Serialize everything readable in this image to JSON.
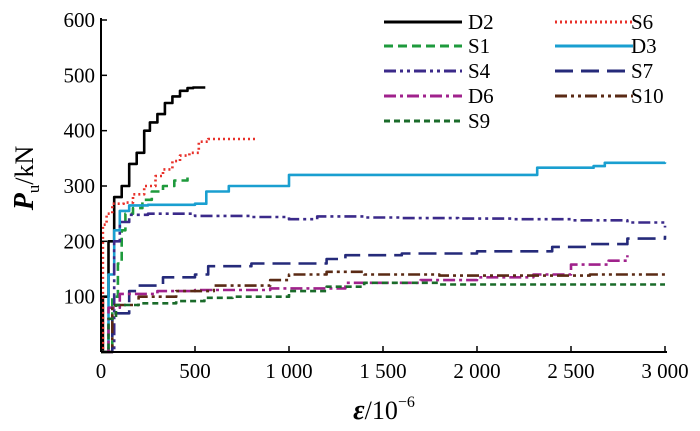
{
  "chart_data": {
    "type": "line",
    "ylabel": {
      "main": "P",
      "sub": "u",
      "unit": "/kN"
    },
    "xlabel": {
      "main": "ε",
      "unit": "/10",
      "exp": "−6"
    },
    "xlim": [
      0,
      3000
    ],
    "ylim": [
      0,
      600
    ],
    "x_ticks": [
      0,
      500,
      1000,
      1500,
      2000,
      2500,
      3000
    ],
    "x_tick_labels": [
      "0",
      "500",
      "1 000",
      "1 500",
      "2 000",
      "2 500",
      "3 000"
    ],
    "y_ticks": [
      100,
      200,
      300,
      400,
      500,
      600
    ],
    "y_tick_labels": [
      "100",
      "200",
      "300",
      "400",
      "500",
      "600"
    ],
    "grid": false,
    "legend_position": "top-right",
    "series": [
      {
        "name": "D2",
        "color": "#000000",
        "dash": "solid",
        "points": [
          [
            0,
            0
          ],
          [
            10,
            100
          ],
          [
            40,
            200
          ],
          [
            70,
            280
          ],
          [
            110,
            300
          ],
          [
            150,
            340
          ],
          [
            190,
            360
          ],
          [
            230,
            400
          ],
          [
            260,
            415
          ],
          [
            300,
            430
          ],
          [
            340,
            450
          ],
          [
            380,
            462
          ],
          [
            420,
            472
          ],
          [
            460,
            477
          ],
          [
            490,
            478
          ],
          [
            555,
            478
          ]
        ]
      },
      {
        "name": "S6",
        "color": "#e8312a",
        "dash": "dot",
        "points": [
          [
            0,
            0
          ],
          [
            10,
            230
          ],
          [
            30,
            250
          ],
          [
            60,
            268
          ],
          [
            120,
            270
          ],
          [
            170,
            285
          ],
          [
            230,
            300
          ],
          [
            290,
            318
          ],
          [
            330,
            330
          ],
          [
            380,
            345
          ],
          [
            420,
            355
          ],
          [
            470,
            360
          ],
          [
            520,
            380
          ],
          [
            570,
            385
          ],
          [
            830,
            385
          ]
        ]
      },
      {
        "name": "S1",
        "color": "#1e9a3c",
        "dash": "dash",
        "points": [
          [
            0,
            0
          ],
          [
            60,
            100
          ],
          [
            90,
            160
          ],
          [
            110,
            220
          ],
          [
            130,
            250
          ],
          [
            170,
            260
          ],
          [
            220,
            275
          ],
          [
            270,
            290
          ],
          [
            330,
            300
          ],
          [
            390,
            310
          ],
          [
            460,
            318
          ]
        ]
      },
      {
        "name": "D3",
        "color": "#1a9fd0",
        "dash": "solid",
        "points": [
          [
            0,
            0
          ],
          [
            40,
            140
          ],
          [
            70,
            220
          ],
          [
            100,
            255
          ],
          [
            150,
            265
          ],
          [
            250,
            266
          ],
          [
            500,
            268
          ],
          [
            560,
            290
          ],
          [
            680,
            300
          ],
          [
            1000,
            320
          ],
          [
            1500,
            320
          ],
          [
            1610,
            320
          ],
          [
            2000,
            320
          ],
          [
            2300,
            320
          ],
          [
            2320,
            333
          ],
          [
            2620,
            336
          ],
          [
            2680,
            342
          ],
          [
            3000,
            343
          ]
        ]
      },
      {
        "name": "S4",
        "color": "#3b2a8a",
        "dash": "dashdotdot",
        "points": [
          [
            0,
            0
          ],
          [
            70,
            200
          ],
          [
            100,
            235
          ],
          [
            150,
            248
          ],
          [
            250,
            250
          ],
          [
            500,
            246
          ],
          [
            800,
            244
          ],
          [
            1000,
            240
          ],
          [
            1150,
            245
          ],
          [
            1300,
            245
          ],
          [
            1400,
            243
          ],
          [
            1600,
            242
          ],
          [
            1900,
            241
          ],
          [
            2200,
            240
          ],
          [
            2500,
            238
          ],
          [
            2800,
            234
          ],
          [
            3000,
            225
          ]
        ]
      },
      {
        "name": "S7",
        "color": "#252a7a",
        "dash": "longdash",
        "points": [
          [
            0,
            0
          ],
          [
            60,
            70
          ],
          [
            150,
            110
          ],
          [
            200,
            120
          ],
          [
            330,
            135
          ],
          [
            500,
            140
          ],
          [
            570,
            155
          ],
          [
            800,
            160
          ],
          [
            1200,
            168
          ],
          [
            1300,
            175
          ],
          [
            1600,
            178
          ],
          [
            2000,
            182
          ],
          [
            2400,
            190
          ],
          [
            2600,
            195
          ],
          [
            2800,
            205
          ],
          [
            3000,
            210
          ]
        ]
      },
      {
        "name": "D6",
        "color": "#a0228c",
        "dash": "dashdot",
        "points": [
          [
            0,
            0
          ],
          [
            40,
            80
          ],
          [
            100,
            105
          ],
          [
            300,
            110
          ],
          [
            500,
            112
          ],
          [
            900,
            115
          ],
          [
            1300,
            125
          ],
          [
            1700,
            130
          ],
          [
            2000,
            135
          ],
          [
            2300,
            140
          ],
          [
            2500,
            158
          ],
          [
            2700,
            165
          ],
          [
            2800,
            175
          ]
        ]
      },
      {
        "name": "S10",
        "color": "#5a2a14",
        "dash": "dashdotdot",
        "points": [
          [
            0,
            0
          ],
          [
            60,
            85
          ],
          [
            200,
            100
          ],
          [
            400,
            110
          ],
          [
            600,
            120
          ],
          [
            900,
            130
          ],
          [
            1000,
            140
          ],
          [
            1200,
            145
          ],
          [
            1400,
            140
          ],
          [
            1800,
            138
          ],
          [
            2200,
            138
          ],
          [
            2600,
            140
          ],
          [
            3000,
            140
          ]
        ]
      },
      {
        "name": "S9",
        "color": "#1a6b2a",
        "dash": "shortdash",
        "points": [
          [
            0,
            0
          ],
          [
            40,
            60
          ],
          [
            80,
            85
          ],
          [
            200,
            88
          ],
          [
            400,
            92
          ],
          [
            550,
            98
          ],
          [
            700,
            100
          ],
          [
            1000,
            110
          ],
          [
            1200,
            118
          ],
          [
            1400,
            125
          ],
          [
            1600,
            125
          ],
          [
            1800,
            122
          ],
          [
            2200,
            122
          ],
          [
            2600,
            122
          ],
          [
            3000,
            122
          ]
        ]
      }
    ]
  }
}
